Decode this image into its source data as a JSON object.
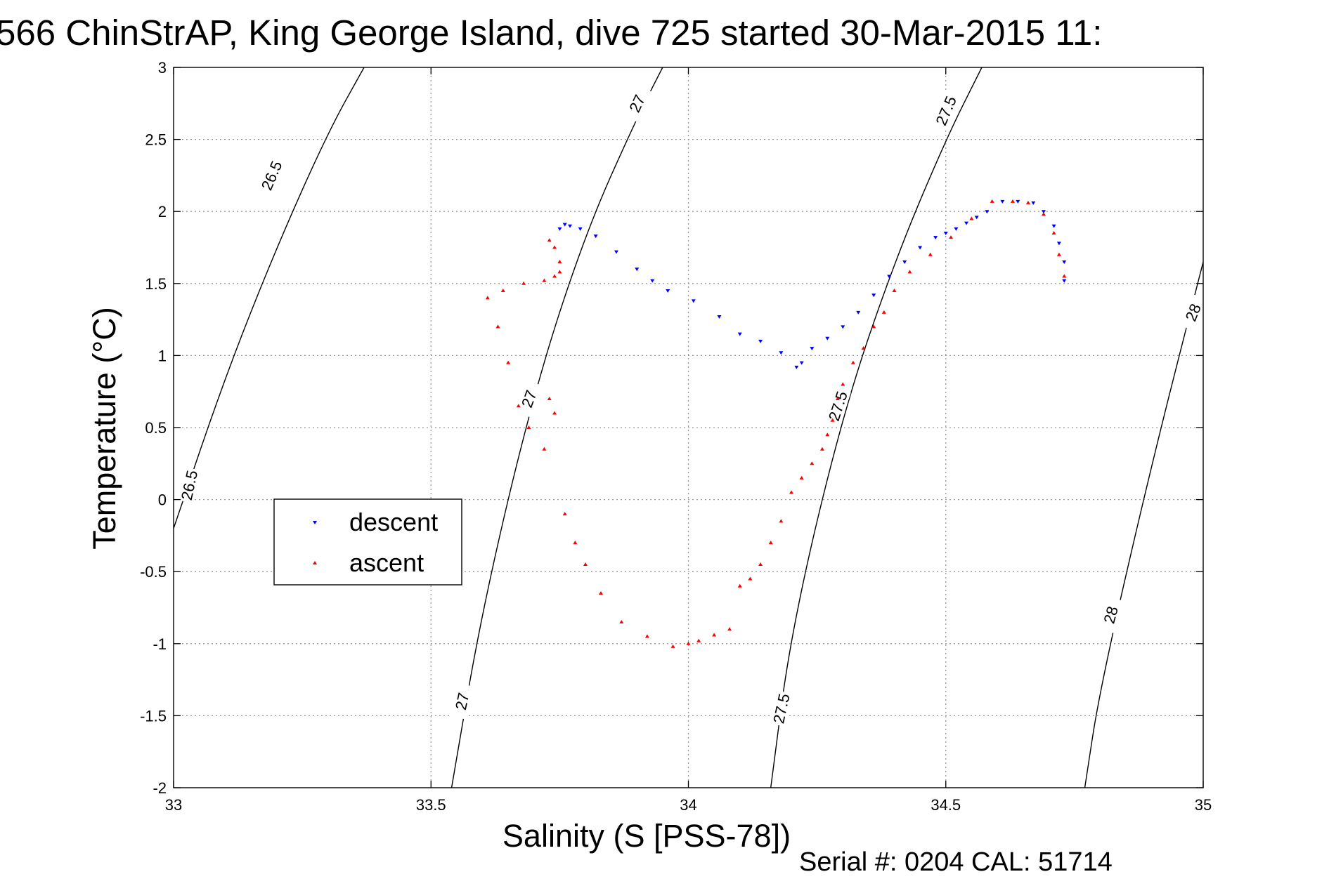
{
  "chart_data": {
    "type": "scatter",
    "title": "566 ChinStrAP, King George Island, dive 725 started 30-Mar-2015 11:",
    "xlabel": "Salinity (S [PSS-78])",
    "ylabel": "Temperature (°C)",
    "xlim": [
      33,
      35
    ],
    "ylim": [
      -2,
      3
    ],
    "xticks": [
      33,
      33.5,
      34,
      34.5,
      35
    ],
    "xtick_labels": [
      "33",
      "33.5",
      "34",
      "34.5",
      "35"
    ],
    "yticks": [
      3,
      2.5,
      2,
      1.5,
      1,
      0.5,
      0,
      -0.5,
      -1,
      -1.5,
      -2
    ],
    "ytick_labels": [
      "3",
      "2.5",
      "2",
      "1.5",
      "1",
      "0.5",
      "0",
      "-0.5",
      "-1",
      "-1.5",
      "-2"
    ],
    "grid": true,
    "legend": {
      "placement": "middle-left",
      "entries": [
        "descent",
        "ascent"
      ]
    },
    "footer": "Serial #: 0204  CAL: 51714",
    "isopycnals": [
      {
        "label": "26.5",
        "points": [
          [
            32.99,
            -0.2
          ],
          [
            33.1,
            0.85
          ],
          [
            33.2,
            1.75
          ],
          [
            33.3,
            2.55
          ],
          [
            33.37,
            3.0
          ]
        ]
      },
      {
        "label": "27",
        "points": [
          [
            33.54,
            -2.0
          ],
          [
            33.6,
            -0.75
          ],
          [
            33.7,
            0.75
          ],
          [
            33.8,
            1.85
          ],
          [
            33.9,
            2.65
          ],
          [
            33.95,
            3.0
          ]
        ]
      },
      {
        "label": "27.5",
        "points": [
          [
            34.16,
            -2.0
          ],
          [
            34.2,
            -0.9
          ],
          [
            34.3,
            0.6
          ],
          [
            34.4,
            1.65
          ],
          [
            34.5,
            2.5
          ],
          [
            34.57,
            3.0
          ]
        ]
      },
      {
        "label": "28",
        "points": [
          [
            34.77,
            -2.0
          ],
          [
            34.8,
            -1.3
          ],
          [
            34.9,
            0.25
          ],
          [
            35.0,
            1.65
          ]
        ]
      }
    ],
    "contour_labels": [
      {
        "text": "26.5",
        "x": 33.19,
        "y": 2.25,
        "angle": -67
      },
      {
        "text": "26.5",
        "x": 33.03,
        "y": 0.1,
        "angle": -78
      },
      {
        "text": "27",
        "x": 33.9,
        "y": 2.75,
        "angle": -65
      },
      {
        "text": "27",
        "x": 33.69,
        "y": 0.7,
        "angle": -70
      },
      {
        "text": "27",
        "x": 33.56,
        "y": -1.4,
        "angle": -78
      },
      {
        "text": "27.5",
        "x": 34.5,
        "y": 2.7,
        "angle": -67
      },
      {
        "text": "27.5",
        "x": 34.29,
        "y": 0.65,
        "angle": -72
      },
      {
        "text": "27.5",
        "x": 34.18,
        "y": -1.45,
        "angle": -78
      },
      {
        "text": "28",
        "x": 34.98,
        "y": 1.3,
        "angle": -68
      },
      {
        "text": "28",
        "x": 34.82,
        "y": -0.8,
        "angle": -75
      }
    ],
    "series": [
      {
        "name": "descent",
        "color": "#0000ff",
        "marker": "triangle-down",
        "x": [
          33.75,
          33.76,
          33.77,
          33.79,
          33.82,
          33.86,
          33.9,
          33.93,
          33.96,
          34.01,
          34.06,
          34.1,
          34.14,
          34.18,
          34.21,
          34.22,
          34.24,
          34.27,
          34.3,
          34.33,
          34.36,
          34.39,
          34.42,
          34.45,
          34.48,
          34.5,
          34.52,
          34.54,
          34.56,
          34.58,
          34.61,
          34.64,
          34.67,
          34.69,
          34.71,
          34.72,
          34.73,
          34.73
        ],
        "y": [
          1.88,
          1.91,
          1.9,
          1.88,
          1.83,
          1.72,
          1.6,
          1.52,
          1.45,
          1.38,
          1.27,
          1.15,
          1.1,
          1.02,
          0.92,
          0.95,
          1.05,
          1.12,
          1.2,
          1.3,
          1.42,
          1.55,
          1.65,
          1.75,
          1.82,
          1.85,
          1.88,
          1.92,
          1.96,
          2.0,
          2.07,
          2.07,
          2.06,
          2.0,
          1.9,
          1.78,
          1.65,
          1.52
        ]
      },
      {
        "name": "ascent",
        "color": "#ff0000",
        "marker": "triangle-up",
        "x": [
          33.73,
          33.74,
          33.75,
          33.75,
          33.74,
          33.72,
          33.68,
          33.64,
          33.61,
          33.63,
          33.65,
          33.67,
          33.69,
          33.72,
          33.73,
          33.74,
          33.76,
          33.78,
          33.8,
          33.83,
          33.87,
          33.92,
          33.97,
          34.0,
          34.02,
          34.05,
          34.08,
          34.1,
          34.12,
          34.14,
          34.16,
          34.18,
          34.2,
          34.22,
          34.24,
          34.26,
          34.27,
          34.28,
          34.29,
          34.3,
          34.32,
          34.34,
          34.36,
          34.38,
          34.4,
          34.43,
          34.47,
          34.51,
          34.55,
          34.59,
          34.63,
          34.66,
          34.69,
          34.71,
          34.72,
          34.73
        ],
        "y": [
          1.8,
          1.75,
          1.65,
          1.58,
          1.55,
          1.52,
          1.5,
          1.45,
          1.4,
          1.2,
          0.95,
          0.65,
          0.5,
          0.35,
          0.7,
          0.6,
          -0.1,
          -0.3,
          -0.45,
          -0.65,
          -0.85,
          -0.95,
          -1.02,
          -1.0,
          -0.98,
          -0.94,
          -0.9,
          -0.6,
          -0.55,
          -0.45,
          -0.3,
          -0.15,
          0.05,
          0.15,
          0.25,
          0.35,
          0.45,
          0.55,
          0.7,
          0.8,
          0.95,
          1.05,
          1.2,
          1.3,
          1.45,
          1.58,
          1.7,
          1.82,
          1.95,
          2.07,
          2.07,
          2.06,
          1.98,
          1.85,
          1.7,
          1.55
        ]
      }
    ]
  }
}
